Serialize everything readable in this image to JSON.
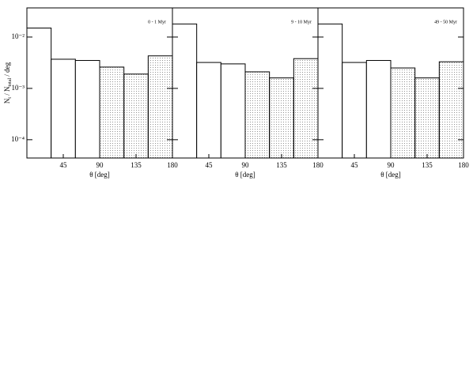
{
  "chart_data": [
    {
      "type": "histogram",
      "annotation": "0 - 1 Myr",
      "xlabel": "θ [deg]",
      "ylabel_parts": [
        "N",
        "t",
        " / N",
        "total",
        " / deg"
      ],
      "bins": [
        0,
        30,
        60,
        90,
        120,
        150,
        180
      ],
      "values": [
        0.015,
        0.0037,
        0.0035,
        0.0026,
        0.0019,
        0.0043
      ],
      "fills": [
        "none",
        "none",
        "none",
        "dots",
        "dots",
        "dots"
      ],
      "xlim": [
        0,
        180
      ],
      "xticks": [
        45,
        90,
        135,
        180
      ],
      "ylim": [
        4.4e-05,
        0.037
      ],
      "log_y": true,
      "yticks": [
        {
          "value": 0.0001,
          "label": "10⁻⁴"
        },
        {
          "value": 0.001,
          "label": "10⁻³"
        },
        {
          "value": 0.01,
          "label": "10⁻²"
        }
      ]
    },
    {
      "type": "histogram",
      "annotation": "9 - 10 Myr",
      "xlabel": "θ [deg]",
      "bins": [
        0,
        30,
        60,
        90,
        120,
        150,
        180
      ],
      "values": [
        0.018,
        0.0032,
        0.003,
        0.0021,
        0.0016,
        0.0038
      ],
      "fills": [
        "none",
        "none",
        "none",
        "dots",
        "dots",
        "dots"
      ],
      "xlim": [
        0,
        180
      ],
      "xticks": [
        45,
        90,
        135,
        180
      ],
      "ylim": [
        4.4e-05,
        0.037
      ],
      "log_y": true,
      "yticks": [
        0.0001,
        0.001,
        0.01
      ]
    },
    {
      "type": "histogram",
      "annotation": "49 - 50 Myr",
      "xlabel": "θ [deg]",
      "bins": [
        0,
        30,
        60,
        90,
        120,
        150,
        180
      ],
      "values": [
        0.018,
        0.0032,
        0.0035,
        0.0025,
        0.0016,
        0.0033
      ],
      "fills": [
        "none",
        "none",
        "none",
        "dots",
        "dots",
        "dots"
      ],
      "xlim": [
        0,
        180
      ],
      "xticks": [
        45,
        90,
        135,
        180
      ],
      "ylim": [
        4.4e-05,
        0.037
      ],
      "log_y": true,
      "yticks": [
        0.0001,
        0.001,
        0.01
      ]
    }
  ]
}
